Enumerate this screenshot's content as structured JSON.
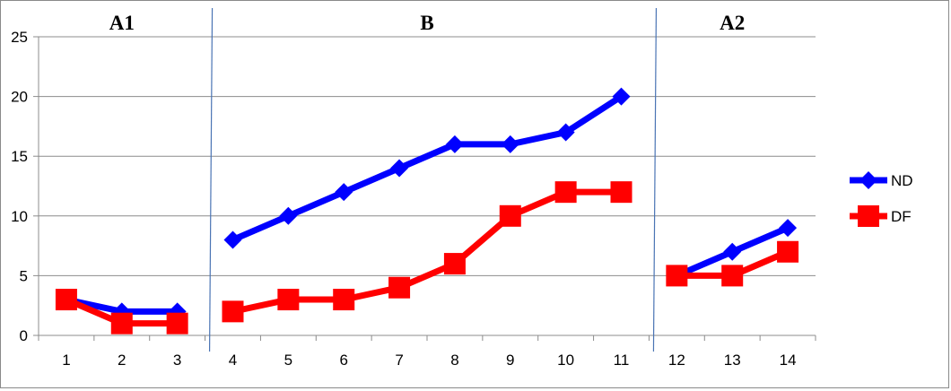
{
  "chart_data": {
    "type": "line",
    "categories": [
      "1",
      "2",
      "3",
      "4",
      "5",
      "6",
      "7",
      "8",
      "9",
      "10",
      "11",
      "12",
      "13",
      "14"
    ],
    "ylim": [
      0,
      25
    ],
    "yticks": [
      "0",
      "5",
      "10",
      "15",
      "20",
      "25"
    ],
    "grid": true,
    "legend_position": "right",
    "phases": [
      {
        "label": "A1",
        "start": 1,
        "end": 3
      },
      {
        "label": "B",
        "start": 4,
        "end": 11
      },
      {
        "label": "A2",
        "start": 12,
        "end": 14
      }
    ],
    "series": [
      {
        "name": "ND",
        "color": "#0000ff",
        "marker": "diamond",
        "segments": [
          [
            [
              1,
              3
            ],
            [
              2,
              2
            ],
            [
              3,
              2
            ]
          ],
          [
            [
              4,
              8
            ],
            [
              5,
              10
            ],
            [
              6,
              12
            ],
            [
              7,
              14
            ],
            [
              8,
              16
            ],
            [
              9,
              16
            ],
            [
              10,
              17
            ],
            [
              11,
              20
            ]
          ],
          [
            [
              12,
              5
            ],
            [
              13,
              7
            ],
            [
              14,
              9
            ]
          ]
        ]
      },
      {
        "name": "DF",
        "color": "#ff0000",
        "marker": "square",
        "segments": [
          [
            [
              1,
              3
            ],
            [
              2,
              1
            ],
            [
              3,
              1
            ]
          ],
          [
            [
              4,
              2
            ],
            [
              5,
              3
            ],
            [
              6,
              3
            ],
            [
              7,
              4
            ],
            [
              8,
              6
            ],
            [
              9,
              10
            ],
            [
              10,
              12
            ],
            [
              11,
              12
            ]
          ],
          [
            [
              12,
              5
            ],
            [
              13,
              5
            ],
            [
              14,
              7
            ]
          ]
        ]
      }
    ]
  }
}
